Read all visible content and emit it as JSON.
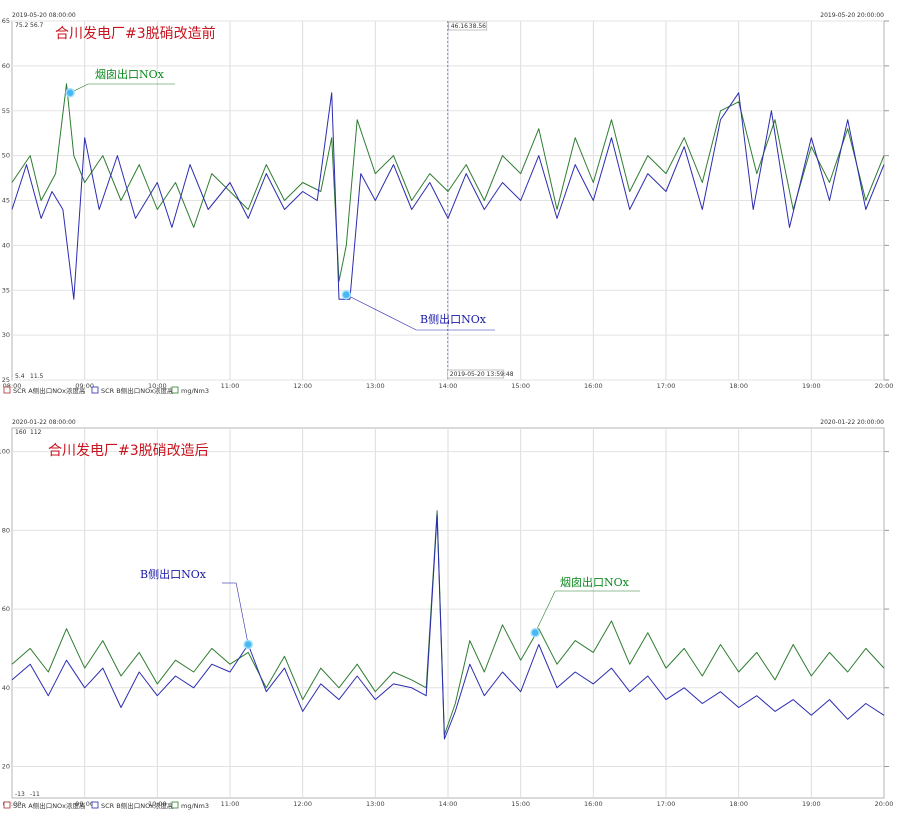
{
  "chart_data": [
    {
      "type": "line",
      "title": "合川发电厂#3脱硝改造前",
      "start_label": "2019-05-20 08:00:00",
      "end_label": "2019-05-20 20:00:00",
      "top_values": [
        "75.2",
        "56.7"
      ],
      "bottom_values": [
        "5.4",
        "11.5"
      ],
      "cursor": {
        "time": "2019-05-20 13:59:48",
        "value_a": "46.16",
        "value_b": "38.56"
      },
      "ylim": [
        25,
        65
      ],
      "yticks": [
        "65",
        "60",
        "55",
        "50",
        "45",
        "40",
        "35",
        "30",
        "25"
      ],
      "xticks": [
        "08:00",
        "09:00",
        "10:00",
        "11:00",
        "12:00",
        "13:00",
        "14:00",
        "15:00",
        "16:00",
        "17:00",
        "18:00",
        "19:00",
        "20:00"
      ],
      "legend": [
        "SCR A侧出口NOx浓度高",
        "SCR B侧出口NOx浓度高",
        "mg/Nm3"
      ],
      "annotations": [
        {
          "label": "烟囱出口NOx",
          "time": 8.8,
          "value": 57,
          "series": "green"
        },
        {
          "label": "B侧出口NOx",
          "time": 12.6,
          "value": 34.5,
          "series": "blue"
        }
      ],
      "series": [
        {
          "color": "#2f7d32",
          "x": [
            8.0,
            8.25,
            8.4,
            8.6,
            8.75,
            8.85,
            9.0,
            9.25,
            9.5,
            9.75,
            10.0,
            10.25,
            10.5,
            10.75,
            11.0,
            11.25,
            11.5,
            11.75,
            12.0,
            12.25,
            12.4,
            12.5,
            12.6,
            12.75,
            13.0,
            13.25,
            13.5,
            13.75,
            14.0,
            14.25,
            14.5,
            14.75,
            15.0,
            15.25,
            15.5,
            15.75,
            16.0,
            16.25,
            16.5,
            16.75,
            17.0,
            17.25,
            17.5,
            17.75,
            18.0,
            18.25,
            18.5,
            18.75,
            19.0,
            19.25,
            19.5,
            19.75,
            20.0
          ],
          "values": [
            47,
            50,
            45,
            48,
            58,
            50,
            47,
            50,
            45,
            49,
            44,
            47,
            42,
            48,
            46,
            44,
            49,
            45,
            47,
            46,
            52,
            36,
            40,
            54,
            48,
            50,
            45,
            48,
            46,
            49,
            45,
            50,
            48,
            53,
            44,
            52,
            47,
            54,
            46,
            50,
            48,
            52,
            47,
            55,
            56,
            48,
            54,
            44,
            51,
            47,
            53,
            45,
            50
          ]
        },
        {
          "color": "#2c2cb0",
          "x": [
            8.0,
            8.2,
            8.4,
            8.55,
            8.7,
            8.85,
            9.0,
            9.2,
            9.45,
            9.7,
            10.0,
            10.2,
            10.45,
            10.7,
            11.0,
            11.25,
            11.5,
            11.75,
            12.0,
            12.2,
            12.4,
            12.5,
            12.65,
            12.8,
            13.0,
            13.25,
            13.5,
            13.75,
            14.0,
            14.25,
            14.5,
            14.75,
            15.0,
            15.25,
            15.5,
            15.75,
            16.0,
            16.25,
            16.5,
            16.75,
            17.0,
            17.25,
            17.5,
            17.75,
            18.0,
            18.2,
            18.45,
            18.7,
            19.0,
            19.25,
            19.5,
            19.75,
            20.0
          ],
          "values": [
            44,
            49,
            43,
            46,
            44,
            34,
            52,
            44,
            50,
            43,
            47,
            42,
            49,
            44,
            47,
            43,
            48,
            44,
            46,
            45,
            57,
            34,
            34,
            48,
            45,
            49,
            44,
            47,
            43,
            48,
            44,
            47,
            45,
            50,
            43,
            49,
            45,
            52,
            44,
            48,
            46,
            51,
            44,
            54,
            57,
            44,
            55,
            42,
            52,
            45,
            54,
            44,
            49
          ]
        }
      ]
    },
    {
      "type": "line",
      "title": "合川发电厂#3脱硝改造后",
      "start_label": "2020-01-22 08:00:00",
      "end_label": "2020-01-22 20:00:00",
      "top_values": [
        "160",
        "112"
      ],
      "bottom_values": [
        "-13",
        "-11"
      ],
      "ylim": [
        12,
        106
      ],
      "yticks": [
        "100",
        "80",
        "60",
        "40",
        "20"
      ],
      "xticks": [
        "08:00",
        "09:00",
        "10:00",
        "11:00",
        "12:00",
        "13:00",
        "14:00",
        "15:00",
        "16:00",
        "17:00",
        "18:00",
        "19:00",
        "20:00"
      ],
      "legend": [
        "SCR A侧出口NOx浓度高",
        "SCR B侧出口NOx浓度高",
        "mg/Nm3"
      ],
      "annotations": [
        {
          "label": "B侧出口NOx",
          "time": 11.25,
          "value": 51,
          "series": "blue"
        },
        {
          "label": "烟囱出口NOx",
          "time": 15.2,
          "value": 54,
          "series": "green"
        }
      ],
      "series": [
        {
          "color": "#2f7d32",
          "x": [
            8.0,
            8.25,
            8.5,
            8.75,
            9.0,
            9.25,
            9.5,
            9.75,
            10.0,
            10.25,
            10.5,
            10.75,
            11.0,
            11.25,
            11.5,
            11.75,
            12.0,
            12.25,
            12.5,
            12.75,
            13.0,
            13.25,
            13.5,
            13.7,
            13.85,
            13.95,
            14.1,
            14.3,
            14.5,
            14.75,
            15.0,
            15.25,
            15.5,
            15.75,
            16.0,
            16.25,
            16.5,
            16.75,
            17.0,
            17.25,
            17.5,
            17.75,
            18.0,
            18.25,
            18.5,
            18.75,
            19.0,
            19.25,
            19.5,
            19.75,
            20.0
          ],
          "values": [
            46,
            50,
            44,
            55,
            45,
            52,
            43,
            49,
            41,
            47,
            44,
            50,
            46,
            49,
            40,
            48,
            37,
            45,
            40,
            46,
            39,
            44,
            42,
            40,
            85,
            28,
            36,
            52,
            44,
            56,
            47,
            55,
            46,
            52,
            49,
            57,
            46,
            54,
            45,
            50,
            43,
            51,
            44,
            49,
            42,
            51,
            43,
            49,
            44,
            50,
            45
          ]
        },
        {
          "color": "#2c2cb0",
          "x": [
            8.0,
            8.25,
            8.5,
            8.75,
            9.0,
            9.25,
            9.5,
            9.75,
            10.0,
            10.25,
            10.5,
            10.75,
            11.0,
            11.25,
            11.5,
            11.75,
            12.0,
            12.25,
            12.5,
            12.75,
            13.0,
            13.25,
            13.5,
            13.7,
            13.85,
            13.95,
            14.1,
            14.3,
            14.5,
            14.75,
            15.0,
            15.25,
            15.5,
            15.75,
            16.0,
            16.25,
            16.5,
            16.75,
            17.0,
            17.25,
            17.5,
            17.75,
            18.0,
            18.25,
            18.5,
            18.75,
            19.0,
            19.25,
            19.5,
            19.75,
            20.0
          ],
          "values": [
            42,
            46,
            38,
            47,
            40,
            45,
            35,
            44,
            38,
            43,
            40,
            46,
            44,
            51,
            39,
            45,
            34,
            41,
            37,
            43,
            37,
            41,
            40,
            38,
            84,
            27,
            34,
            46,
            38,
            44,
            39,
            51,
            40,
            44,
            41,
            45,
            39,
            43,
            37,
            40,
            36,
            39,
            35,
            38,
            34,
            37,
            33,
            37,
            32,
            36,
            33
          ]
        }
      ]
    }
  ]
}
